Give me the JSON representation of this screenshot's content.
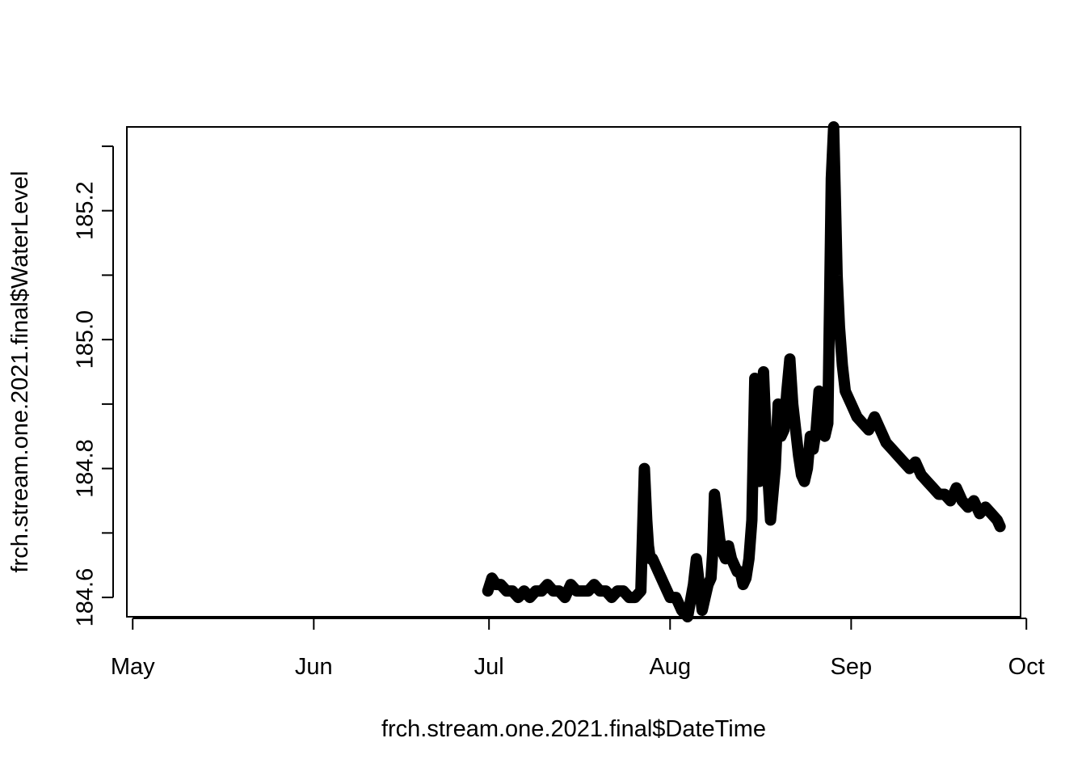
{
  "chart_data": {
    "type": "line",
    "title": "",
    "xlabel": "frch.stream.one.2021.final$DateTime",
    "ylabel": "frch.stream.one.2021.final$WaterLevel",
    "x_unit": "day of year 2021",
    "xlim": [
      120,
      273
    ],
    "ylim": [
      184.57,
      185.33
    ],
    "x_ticks": [
      {
        "label": "May",
        "day": 121
      },
      {
        "label": "Jun",
        "day": 152
      },
      {
        "label": "Jul",
        "day": 182
      },
      {
        "label": "Aug",
        "day": 213
      },
      {
        "label": "Sep",
        "day": 244
      },
      {
        "label": "Oct",
        "day": 274
      }
    ],
    "y_ticks": [
      184.6,
      184.8,
      185.0,
      185.2
    ],
    "y_tick_labels": [
      "184.6",
      "184.8",
      "185.0",
      "185.2"
    ],
    "y_minor_ticks": [
      184.7,
      184.9,
      185.1,
      185.3
    ],
    "series": [
      {
        "name": "WaterLevel",
        "color": "#000000",
        "x": [
          181.8,
          182.5,
          183.2,
          184.0,
          185.0,
          186.0,
          187.0,
          188.0,
          189.0,
          190.0,
          191.0,
          192.0,
          193.0,
          194.0,
          195.0,
          196.0,
          197.0,
          198.0,
          199.0,
          200.0,
          201.0,
          202.0,
          203.0,
          204.0,
          205.0,
          206.0,
          207.0,
          208.0,
          208.6,
          209.0,
          209.3,
          209.6,
          210.0,
          210.5,
          211.0,
          212.0,
          213.0,
          214.0,
          215.0,
          216.0,
          217.0,
          217.5,
          218.0,
          218.5,
          219.0,
          219.5,
          220.0,
          220.3,
          220.6,
          221.0,
          221.5,
          222.0,
          222.5,
          223.0,
          223.5,
          224.0,
          224.5,
          225.0,
          225.5,
          226.0,
          226.5,
          227.0,
          227.5,
          228.0,
          228.3,
          228.6,
          229.0,
          229.4,
          229.8,
          230.2,
          230.6,
          231.0,
          231.5,
          232.0,
          232.5,
          233.0,
          233.5,
          234.0,
          234.5,
          235.0,
          235.5,
          236.0,
          236.5,
          237.0,
          237.5,
          238.0,
          238.5,
          239.0,
          239.5,
          240.0,
          240.3,
          240.6,
          241.0,
          241.3,
          241.6,
          242.0,
          242.5,
          243.0,
          244.0,
          245.0,
          246.0,
          247.0,
          248.0,
          249.0,
          250.0,
          251.0,
          252.0,
          253.0,
          254.0,
          255.0,
          256.0,
          257.0,
          258.0,
          259.0,
          260.0,
          261.0,
          262.0,
          263.0,
          264.0,
          265.0,
          266.0,
          267.0,
          268.0,
          269.0,
          269.5
        ],
        "y": [
          184.61,
          184.63,
          184.62,
          184.62,
          184.61,
          184.61,
          184.6,
          184.61,
          184.6,
          184.61,
          184.61,
          184.62,
          184.61,
          184.61,
          184.6,
          184.62,
          184.61,
          184.61,
          184.61,
          184.62,
          184.61,
          184.61,
          184.6,
          184.61,
          184.61,
          184.6,
          184.6,
          184.61,
          184.8,
          184.72,
          184.68,
          184.66,
          184.66,
          184.65,
          184.64,
          184.62,
          184.6,
          184.6,
          184.58,
          184.57,
          184.62,
          184.66,
          184.62,
          184.58,
          184.6,
          184.62,
          184.63,
          184.67,
          184.76,
          184.73,
          184.69,
          184.67,
          184.66,
          184.68,
          184.66,
          184.65,
          184.64,
          184.64,
          184.62,
          184.63,
          184.66,
          184.72,
          184.94,
          184.85,
          184.78,
          184.9,
          184.95,
          184.86,
          184.78,
          184.72,
          184.76,
          184.8,
          184.9,
          184.85,
          184.86,
          184.92,
          184.97,
          184.9,
          184.86,
          184.82,
          184.79,
          184.78,
          184.8,
          184.85,
          184.83,
          184.86,
          184.92,
          184.89,
          184.85,
          184.87,
          185.05,
          185.25,
          185.33,
          185.22,
          185.1,
          185.02,
          184.96,
          184.92,
          184.9,
          184.88,
          184.87,
          184.86,
          184.88,
          184.86,
          184.84,
          184.83,
          184.82,
          184.81,
          184.8,
          184.81,
          184.79,
          184.78,
          184.77,
          184.76,
          184.76,
          184.75,
          184.77,
          184.75,
          184.74,
          184.75,
          184.73,
          184.74,
          184.73,
          184.72,
          184.71
        ]
      }
    ]
  }
}
